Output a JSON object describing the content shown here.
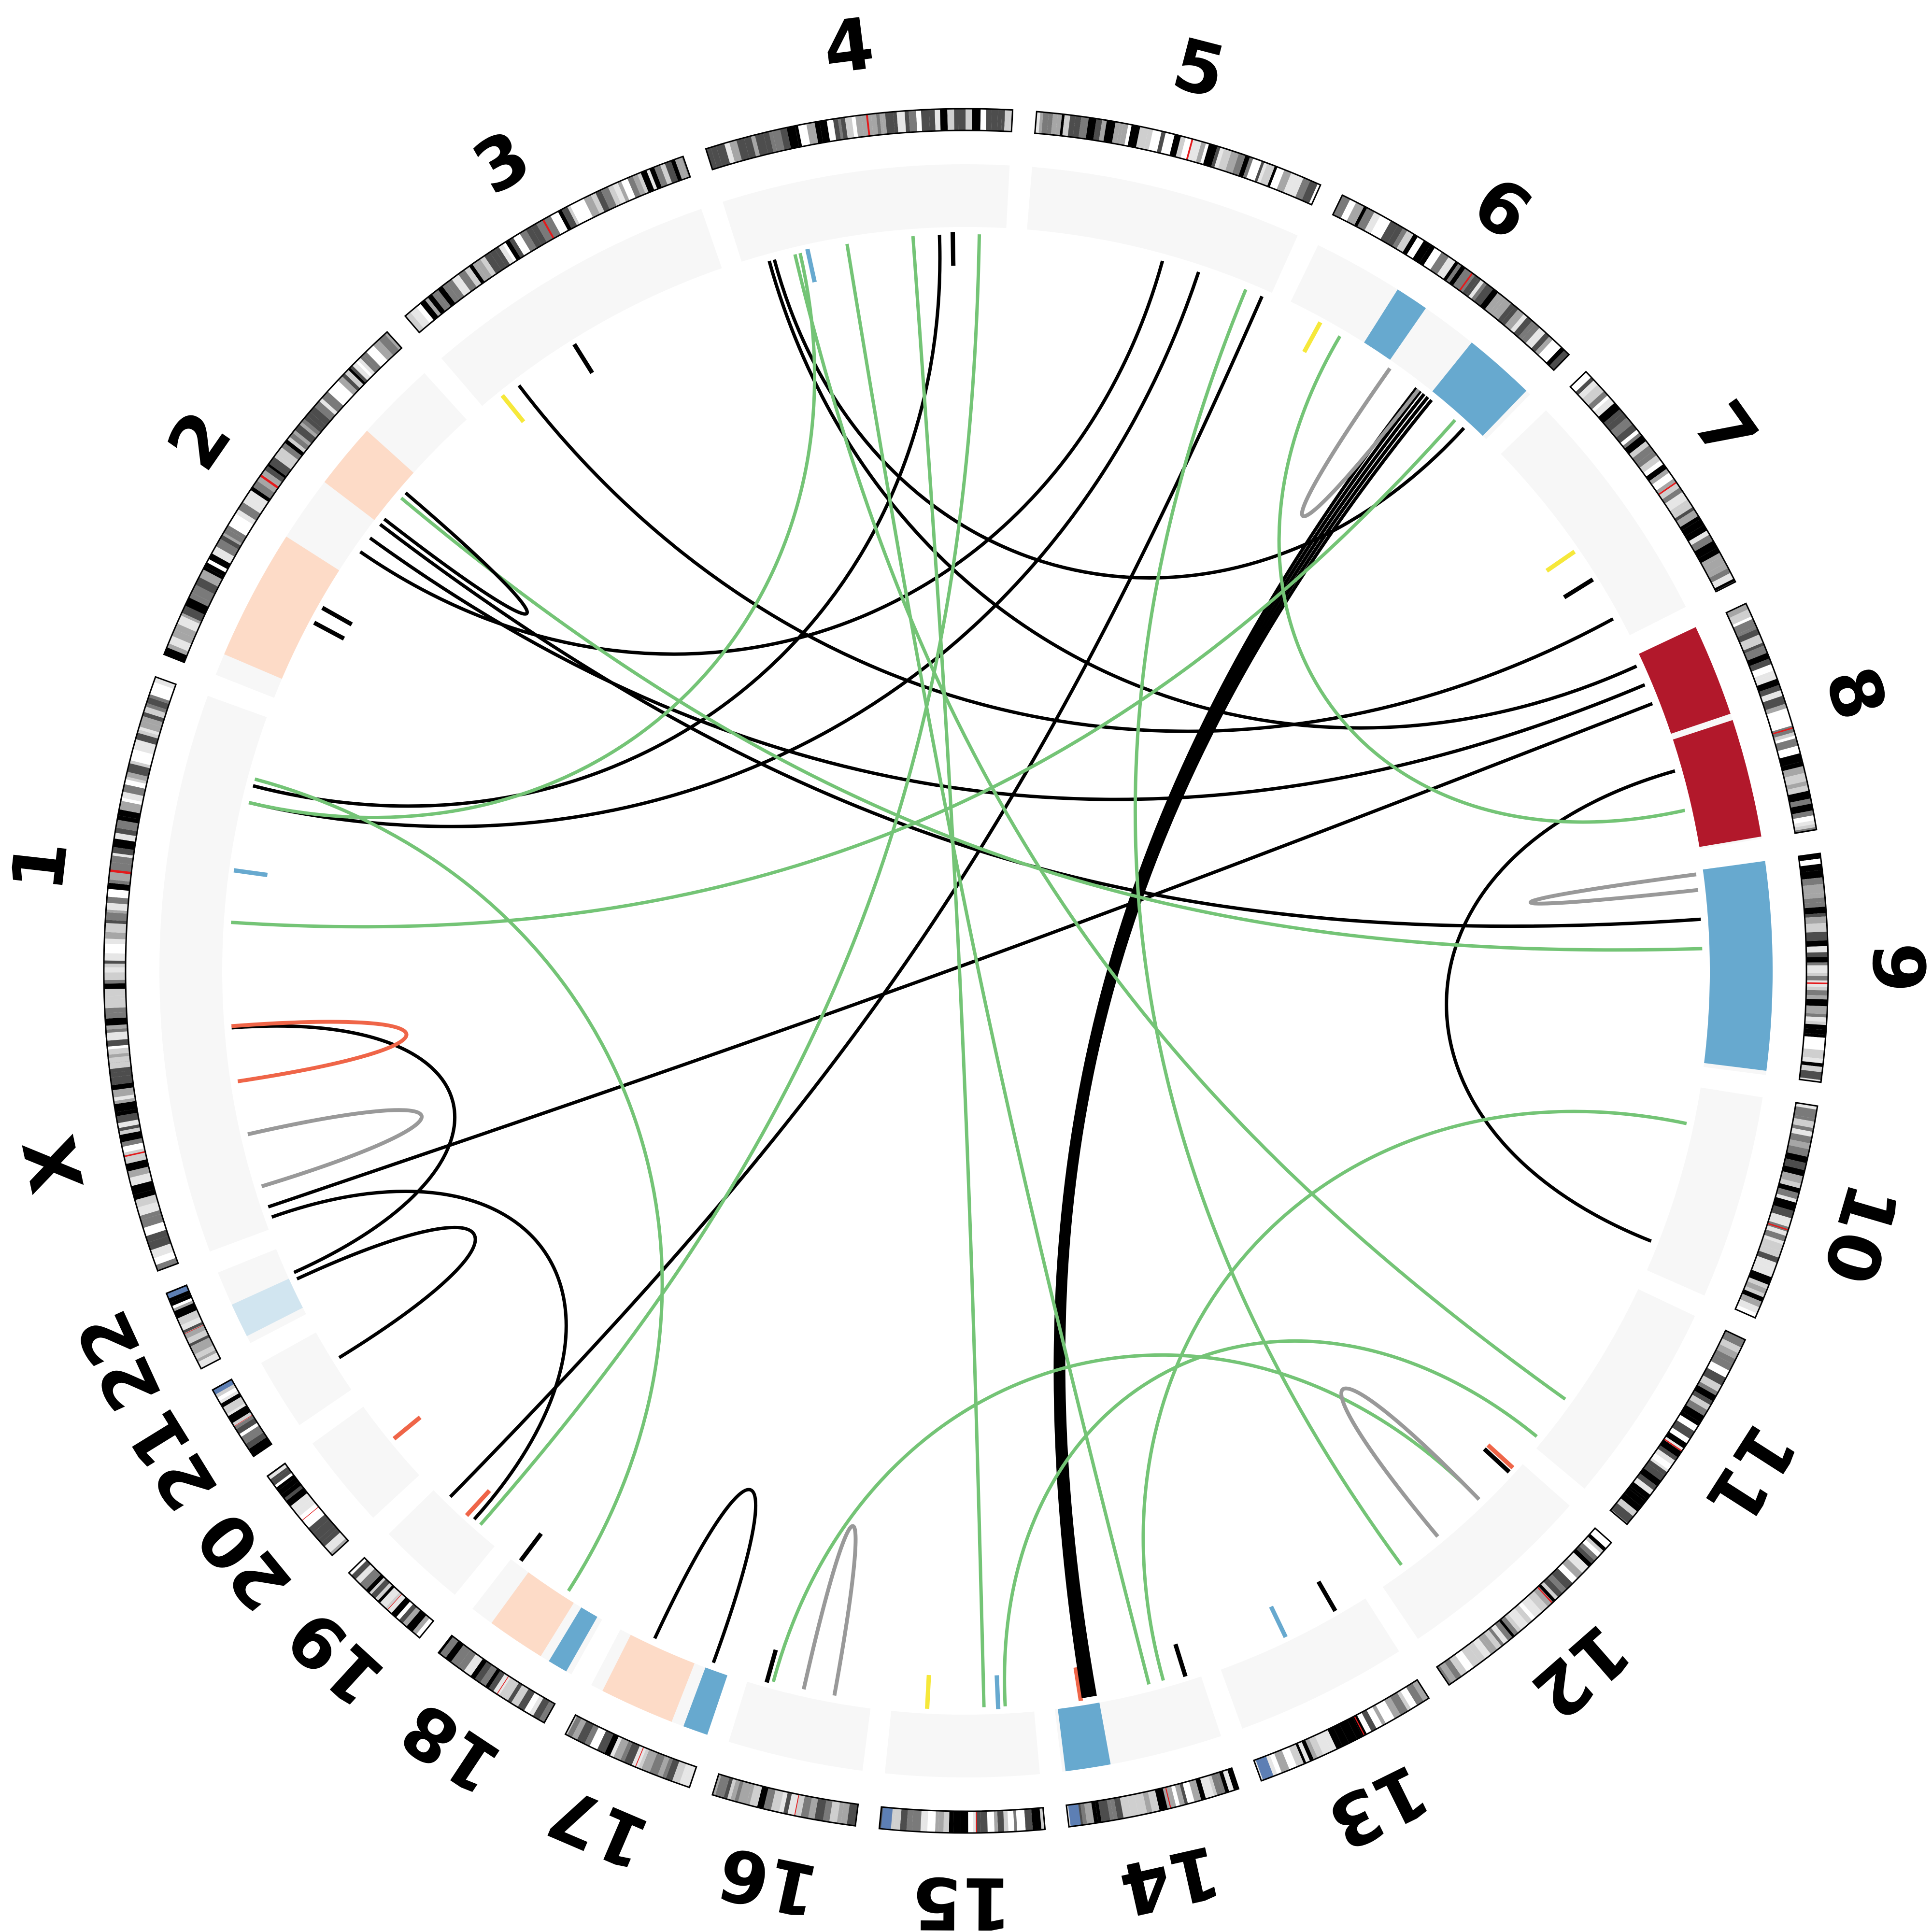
{
  "figure": {
    "type": "circos-genome-plot"
  },
  "chromosomes": [
    {
      "name": "1",
      "size": 249
    },
    {
      "name": "2",
      "size": 243
    },
    {
      "name": "3",
      "size": 198
    },
    {
      "name": "4",
      "size": 191
    },
    {
      "name": "5",
      "size": 181
    },
    {
      "name": "6",
      "size": 171
    },
    {
      "name": "7",
      "size": 159
    },
    {
      "name": "8",
      "size": 146
    },
    {
      "name": "9",
      "size": 141
    },
    {
      "name": "10",
      "size": 136
    },
    {
      "name": "11",
      "size": 135
    },
    {
      "name": "12",
      "size": 133
    },
    {
      "name": "13",
      "size": 115
    },
    {
      "name": "14",
      "size": 107
    },
    {
      "name": "15",
      "size": 102
    },
    {
      "name": "16",
      "size": 90
    },
    {
      "name": "17",
      "size": 83
    },
    {
      "name": "18",
      "size": 78
    },
    {
      "name": "19",
      "size": 59
    },
    {
      "name": "20",
      "size": 63
    },
    {
      "name": "21",
      "size": 48
    },
    {
      "name": "22",
      "size": 51
    },
    {
      "name": "X",
      "size": 155
    }
  ],
  "colors": {
    "background_track": "#f7f7f7",
    "gain_high": "#b2182b",
    "gain_low": "#fddbc7",
    "loss": "#67a9cf",
    "loss_light": "#d1e5f0",
    "link_inter": "#000000",
    "link_intra_complex": "#74c476",
    "link_foldback": "#999999",
    "link_deletion": "#ef6548",
    "marker_yellow": "#f6e83a",
    "centromere": "#e41a1c",
    "acrocentric": "#5d7fb4"
  },
  "copy_number_segments": [
    {
      "chr": "2",
      "start": 0.06,
      "end": 0.42,
      "level": "gain_low"
    },
    {
      "chr": "2",
      "start": 0.6,
      "end": 0.78,
      "level": "gain_low"
    },
    {
      "chr": "6",
      "start": 0.7,
      "end": 0.98,
      "level": "loss"
    },
    {
      "chr": "6",
      "start": 0.35,
      "end": 0.48,
      "level": "loss"
    },
    {
      "chr": "8",
      "start": 0.45,
      "end": 0.99,
      "level": "gain_high"
    },
    {
      "chr": "8",
      "start": 0.0,
      "end": 0.42,
      "level": "gain_high"
    },
    {
      "chr": "9",
      "start": 0.0,
      "end": 0.98,
      "level": "loss"
    },
    {
      "chr": "14",
      "start": 0.7,
      "end": 0.98,
      "level": "loss"
    },
    {
      "chr": "17",
      "start": 0.3,
      "end": 0.9,
      "level": "gain_low"
    },
    {
      "chr": "17",
      "start": 0.0,
      "end": 0.2,
      "level": "loss"
    },
    {
      "chr": "18",
      "start": 0.3,
      "end": 0.8,
      "level": "gain_low"
    },
    {
      "chr": "18",
      "start": 0.05,
      "end": 0.22,
      "level": "loss"
    },
    {
      "chr": "22",
      "start": 0.1,
      "end": 0.55,
      "level": "loss_light"
    }
  ],
  "links": [
    {
      "type": "inter",
      "a": {
        "chr": "14",
        "pos": 0.72
      },
      "b": {
        "chr": "6",
        "pos": 0.72
      }
    },
    {
      "type": "inter",
      "a": {
        "chr": "14",
        "pos": 0.74
      },
      "b": {
        "chr": "6",
        "pos": 0.7
      }
    },
    {
      "type": "inter",
      "a": {
        "chr": "14",
        "pos": 0.76
      },
      "b": {
        "chr": "6",
        "pos": 0.68
      }
    },
    {
      "type": "inter",
      "a": {
        "chr": "14",
        "pos": 0.78
      },
      "b": {
        "chr": "6",
        "pos": 0.66
      }
    },
    {
      "type": "inter",
      "a": {
        "chr": "14",
        "pos": 0.8
      },
      "b": {
        "chr": "6",
        "pos": 0.64
      }
    },
    {
      "type": "inter",
      "a": {
        "chr": "X",
        "pos": 0.1
      },
      "b": {
        "chr": "8",
        "pos": 0.25
      }
    },
    {
      "type": "inter",
      "a": {
        "chr": "19",
        "pos": 0.8
      },
      "b": {
        "chr": "5",
        "pos": 0.97
      }
    },
    {
      "type": "inter",
      "a": {
        "chr": "19",
        "pos": 0.4
      },
      "b": {
        "chr": "X",
        "pos": 0.05
      }
    },
    {
      "type": "inter",
      "a": {
        "chr": "1",
        "pos": 0.75
      },
      "b": {
        "chr": "5",
        "pos": 0.7
      }
    },
    {
      "type": "inter",
      "a": {
        "chr": "2",
        "pos": 0.6
      },
      "b": {
        "chr": "9",
        "pos": 0.25
      }
    },
    {
      "type": "inter",
      "a": {
        "chr": "2",
        "pos": 0.55
      },
      "b": {
        "chr": "8",
        "pos": 0.15
      }
    },
    {
      "type": "inter",
      "a": {
        "chr": "4",
        "pos": 0.1
      },
      "b": {
        "chr": "8",
        "pos": 0.05
      }
    },
    {
      "type": "inter",
      "a": {
        "chr": "4",
        "pos": 0.12
      },
      "b": {
        "chr": "6",
        "pos": 0.9
      }
    },
    {
      "type": "inter",
      "a": {
        "chr": "2",
        "pos": 0.5
      },
      "b": {
        "chr": "5",
        "pos": 0.55
      }
    },
    {
      "type": "inter",
      "a": {
        "chr": "1",
        "pos": 0.8
      },
      "b": {
        "chr": "4",
        "pos": 0.75
      }
    },
    {
      "type": "inter",
      "a": {
        "chr": "10",
        "pos": 0.85
      },
      "b": {
        "chr": "8",
        "pos": 0.6
      }
    },
    {
      "type": "inter",
      "a": {
        "chr": "3",
        "pos": 0.15
      },
      "b": {
        "chr": "7",
        "pos": 0.9
      }
    },
    {
      "type": "inter",
      "a": {
        "chr": "21",
        "pos": 0.5
      },
      "b": {
        "chr": "22",
        "pos": 0.5
      }
    },
    {
      "type": "inter",
      "a": {
        "chr": "X",
        "pos": 0.95
      },
      "b": {
        "chr": "22",
        "pos": 0.6
      }
    },
    {
      "type": "intra_complex",
      "a": {
        "chr": "15",
        "pos": 0.35
      },
      "b": {
        "chr": "4",
        "pos": 0.65
      }
    },
    {
      "type": "intra_complex",
      "a": {
        "chr": "14",
        "pos": 0.35
      },
      "b": {
        "chr": "4",
        "pos": 0.4
      }
    },
    {
      "type": "intra_complex",
      "a": {
        "chr": "16",
        "pos": 0.8
      },
      "b": {
        "chr": "12",
        "pos": 0.3
      }
    },
    {
      "type": "intra_complex",
      "a": {
        "chr": "15",
        "pos": 0.2
      },
      "b": {
        "chr": "11",
        "pos": 0.95
      }
    },
    {
      "type": "intra_complex",
      "a": {
        "chr": "14",
        "pos": 0.25
      },
      "b": {
        "chr": "10",
        "pos": 0.2
      }
    },
    {
      "type": "intra_complex",
      "a": {
        "chr": "18",
        "pos": 0.4
      },
      "b": {
        "chr": "1",
        "pos": 0.82
      }
    },
    {
      "type": "intra_complex",
      "a": {
        "chr": "19",
        "pos": 0.3
      },
      "b": {
        "chr": "4",
        "pos": 0.9
      }
    },
    {
      "type": "intra_complex",
      "a": {
        "chr": "1",
        "pos": 0.4
      },
      "b": {
        "chr": "6",
        "pos": 0.85
      }
    },
    {
      "type": "intra_complex",
      "a": {
        "chr": "2",
        "pos": 0.7
      },
      "b": {
        "chr": "9",
        "pos": 0.4
      }
    },
    {
      "type": "intra_complex",
      "a": {
        "chr": "12",
        "pos": 0.85
      },
      "b": {
        "chr": "5",
        "pos": 0.9
      }
    },
    {
      "type": "intra_complex",
      "a": {
        "chr": "11",
        "pos": 0.7
      },
      "b": {
        "chr": "4",
        "pos": 0.2
      }
    },
    {
      "type": "intra_complex",
      "a": {
        "chr": "8",
        "pos": 0.8
      },
      "b": {
        "chr": "6",
        "pos": 0.25
      }
    },
    {
      "type": "intra_complex",
      "a": {
        "chr": "1",
        "pos": 0.75
      },
      "b": {
        "chr": "4",
        "pos": 0.22
      }
    },
    {
      "type": "foldback",
      "a": {
        "chr": "X",
        "pos": 0.45
      },
      "b": {
        "chr": "X",
        "pos": 0.2
      }
    },
    {
      "type": "foldback",
      "a": {
        "chr": "16",
        "pos": 0.55
      },
      "b": {
        "chr": "16",
        "pos": 0.3
      }
    },
    {
      "type": "foldback",
      "a": {
        "chr": "12",
        "pos": 0.6
      },
      "b": {
        "chr": "12",
        "pos": 0.3
      }
    },
    {
      "type": "foldback",
      "a": {
        "chr": "6",
        "pos": 0.65
      },
      "b": {
        "chr": "6",
        "pos": 0.5
      }
    },
    {
      "type": "foldback",
      "a": {
        "chr": "9",
        "pos": 0.1
      },
      "b": {
        "chr": "9",
        "pos": 0.02
      }
    },
    {
      "type": "intra",
      "a": {
        "chr": "17",
        "pos": 0.7
      },
      "b": {
        "chr": "17",
        "pos": 0.15
      }
    },
    {
      "type": "intra",
      "a": {
        "chr": "2",
        "pos": 0.72
      },
      "b": {
        "chr": "2",
        "pos": 0.62
      }
    },
    {
      "type": "deletion",
      "a": {
        "chr": "X",
        "pos": 0.7
      },
      "b": {
        "chr": "1",
        "pos": 0.1
      }
    }
  ],
  "markers": [
    {
      "chr": "3",
      "pos": 0.08,
      "color": "marker_yellow"
    },
    {
      "chr": "15",
      "pos": 0.75,
      "color": "marker_yellow"
    },
    {
      "chr": "7",
      "pos": 0.55,
      "color": "marker_yellow"
    },
    {
      "chr": "6",
      "pos": 0.15,
      "color": "marker_yellow"
    },
    {
      "chr": "1",
      "pos": 0.55,
      "color": "loss"
    },
    {
      "chr": "4",
      "pos": 0.25,
      "color": "loss"
    },
    {
      "chr": "13",
      "pos": 0.55,
      "color": "loss"
    },
    {
      "chr": "15",
      "pos": 0.25,
      "color": "loss"
    },
    {
      "chr": "14",
      "pos": 0.82,
      "color": "link_deletion"
    },
    {
      "chr": "12",
      "pos": 0.05,
      "color": "link_deletion"
    },
    {
      "chr": "19",
      "pos": 0.5,
      "color": "link_deletion"
    },
    {
      "chr": "20",
      "pos": 0.5,
      "color": "link_deletion"
    },
    {
      "chr": "3",
      "pos": 0.4,
      "color": "link_inter"
    },
    {
      "chr": "4",
      "pos": 0.8,
      "color": "link_inter"
    },
    {
      "chr": "14",
      "pos": 0.1,
      "color": "link_inter"
    },
    {
      "chr": "13",
      "pos": 0.2,
      "color": "link_inter"
    },
    {
      "chr": "16",
      "pos": 0.85,
      "color": "link_inter"
    },
    {
      "chr": "18",
      "pos": 0.92,
      "color": "link_inter"
    },
    {
      "chr": "2",
      "pos": 0.3,
      "color": "link_inter"
    },
    {
      "chr": "2",
      "pos": 0.25,
      "color": "link_inter"
    },
    {
      "chr": "7",
      "pos": 0.7,
      "color": "link_inter"
    },
    {
      "chr": "12",
      "pos": 0.08,
      "color": "link_inter"
    }
  ]
}
